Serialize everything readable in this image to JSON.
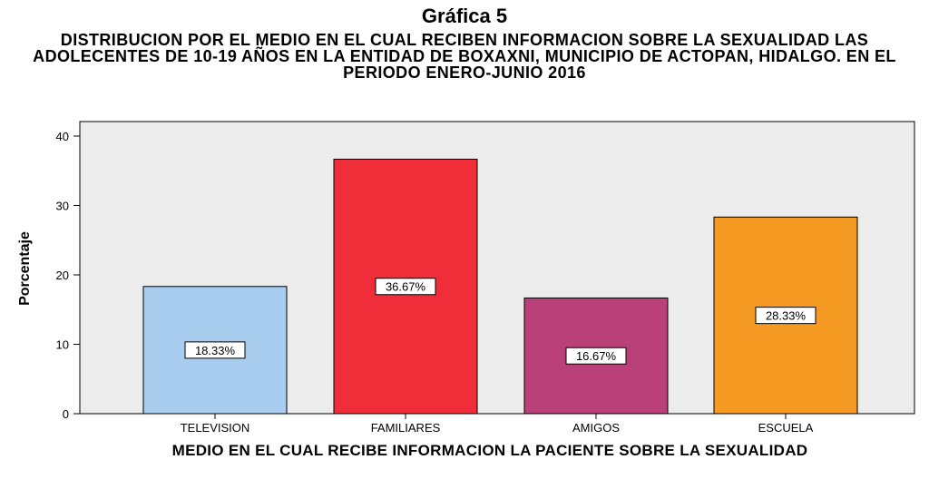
{
  "heading": "Gráfica 5",
  "chart_data": {
    "type": "bar",
    "title": "DISTRIBUCION POR EL MEDIO EN EL CUAL RECIBEN INFORMACION SOBRE LA SEXUALIDAD LAS ADOLECENTES DE 10-19 AÑOS EN LA ENTIDAD DE BOXAXNI, MUNICIPIO DE ACTOPAN, HIDALGO. EN EL PERIODO ENERO-JUNIO 2016",
    "xlabel": "MEDIO EN EL CUAL RECIBE INFORMACION LA PACIENTE SOBRE LA SEXUALIDAD",
    "ylabel": "Porcentaje",
    "categories": [
      "TELEVISION",
      "FAMILIARES",
      "AMIGOS",
      "ESCUELA"
    ],
    "values": [
      18.33,
      36.67,
      16.67,
      28.33
    ],
    "data_labels": [
      "18.33%",
      "36.67%",
      "16.67%",
      "28.33%"
    ],
    "colors": [
      "#a9cdef",
      "#ef2e3a",
      "#b94078",
      "#f59a22"
    ],
    "yticks": [
      "0",
      "10",
      "20",
      "30",
      "40"
    ],
    "ylim": [
      0,
      40
    ],
    "grid": false,
    "plot_background": "#ececec"
  }
}
